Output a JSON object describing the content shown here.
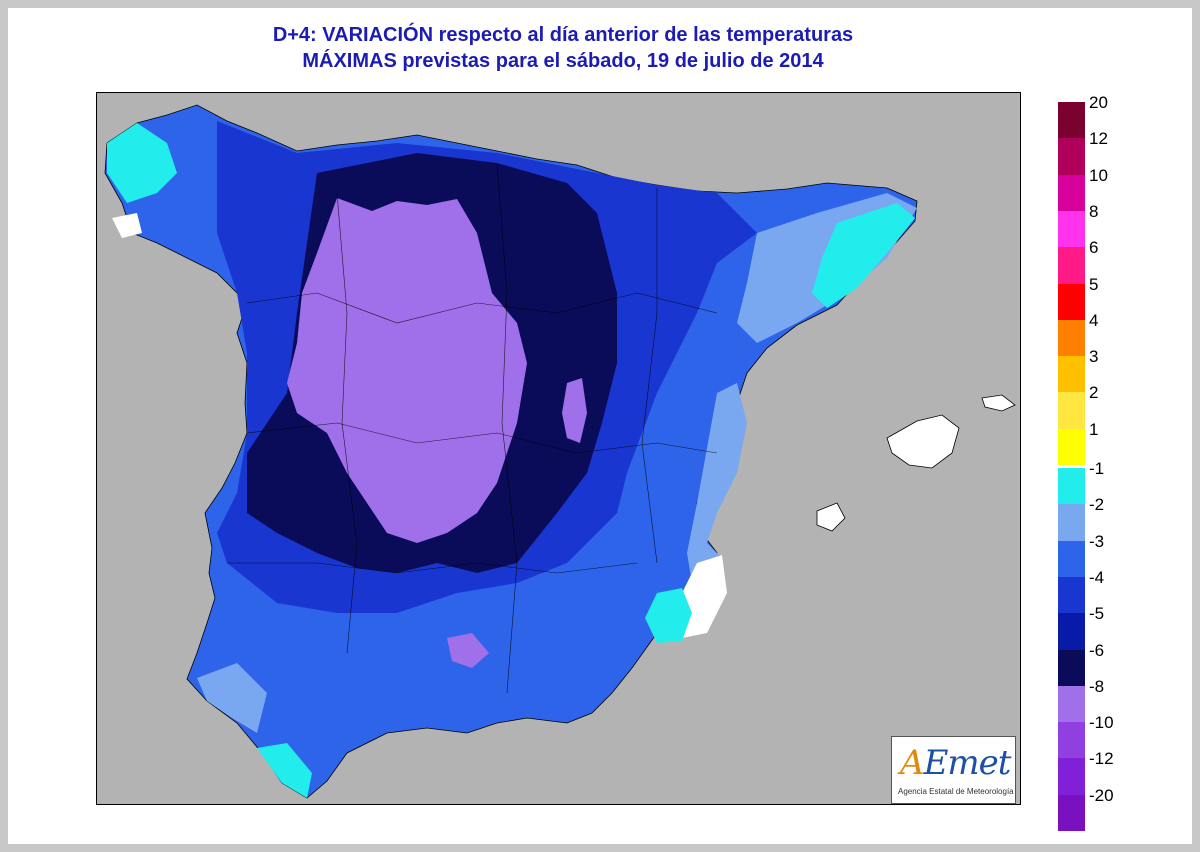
{
  "title": {
    "line1": "D+4: VARIACIÓN respecto al día anterior de las temperaturas",
    "line2": "MÁXIMAS previstas para el sábado, 19 de julio de 2014"
  },
  "logo": {
    "mark_a": "A",
    "mark_rest": "Emet",
    "subtitle": "Agencia Estatal de Meteorología"
  },
  "legend": {
    "positive": [
      {
        "label": "20",
        "color": "#7a0030"
      },
      {
        "label": "12",
        "color": "#b0005a"
      },
      {
        "label": "10",
        "color": "#d8009a"
      },
      {
        "label": "8",
        "color": "#ff33ee"
      },
      {
        "label": "6",
        "color": "#ff1a88"
      },
      {
        "label": "5",
        "color": "#ff0000"
      },
      {
        "label": "4",
        "color": "#ff8000"
      },
      {
        "label": "3",
        "color": "#ffc000"
      },
      {
        "label": "2",
        "color": "#ffe640"
      },
      {
        "label": "1",
        "color": "#ffff00"
      }
    ],
    "negative": [
      {
        "label": "-1",
        "color": "#22ecec"
      },
      {
        "label": "-2",
        "color": "#7aa8f0"
      },
      {
        "label": "-3",
        "color": "#2e64ea"
      },
      {
        "label": "-4",
        "color": "#1a36d0"
      },
      {
        "label": "-5",
        "color": "#0a1aa8"
      },
      {
        "label": "-6",
        "color": "#0a0c5a"
      },
      {
        "label": "-8",
        "color": "#a070ea"
      },
      {
        "label": "-10",
        "color": "#9040e0"
      },
      {
        "label": "-12",
        "color": "#8020d8"
      },
      {
        "label": "-20",
        "color": "#7a10c0"
      }
    ]
  },
  "map_colors": {
    "sea": "#b3b3b3",
    "no_change": "#ffffff",
    "border": "#000000"
  }
}
